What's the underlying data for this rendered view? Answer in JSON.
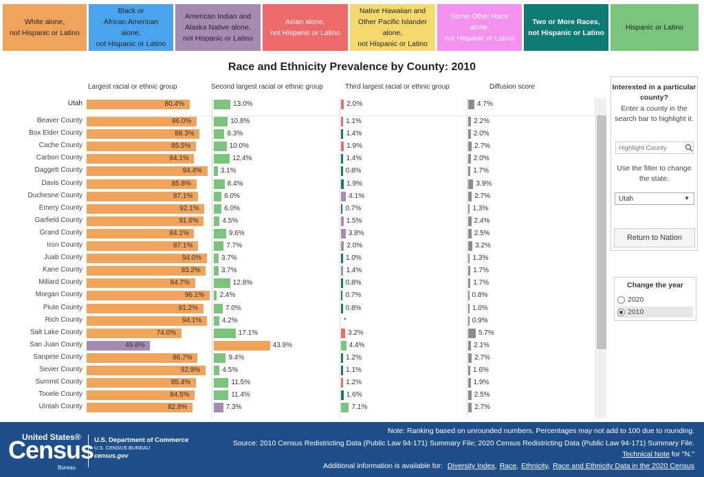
{
  "legend": [
    {
      "label": "White alone,\nnot Hispanic or Latino",
      "color": "#f0a35a",
      "style": "dark-text"
    },
    {
      "label": "Black or\nAfrican American\nalone,\nnot Hispanic or Latino",
      "color": "#4aa4ed",
      "style": "dark-text"
    },
    {
      "label": "American Indian and\nAlaska Native alone,\nnot Hispanic or Latino",
      "color": "#a58bb2",
      "style": "dark-text"
    },
    {
      "label": "Asian alone,\nnot Hispanic or Latino",
      "color": "#ee6a6a",
      "style": "light"
    },
    {
      "label": "Native Hawaiian and\nOther Pacific Islander\nalone,\nnot Hispanic or Latino",
      "color": "#f6d96e",
      "style": "dark-text"
    },
    {
      "label": "Some Other Race\nalone,\nnot Hispanic or Latino",
      "color": "#f490ee",
      "style": "light"
    },
    {
      "label": "Two or More Races,\nnot Hispanic or Latino",
      "color": "#0d7b73",
      "style": "dark"
    },
    {
      "label": "Hispanic or Latino",
      "color": "#7ac47c",
      "style": "dark-text"
    }
  ],
  "title": "Race and Ethnicity Prevalence by County: 2010",
  "column_headers": {
    "largest": "Largest racial or ethnic group",
    "second": "Second largest racial or ethnic group",
    "third": "Third largest racial or ethnic group",
    "diffusion": "Diffusion score"
  },
  "colors": {
    "white": "#f0a35a",
    "aian": "#a58bb2",
    "asian": "#ee6a6a",
    "hispanic": "#7ac47c",
    "two_or_more": "#0d7b73",
    "diffusion": "#8c8c8c",
    "footer": "#1e4f8b"
  },
  "rows": [
    {
      "name": "Utah",
      "state": true,
      "l": [
        80.4,
        "white",
        "80.4%"
      ],
      "s": [
        13.0,
        "hispanic",
        "13.0%"
      ],
      "t": [
        2.0,
        "asian",
        "2.0%"
      ],
      "d": [
        4.7,
        "4.7%"
      ]
    },
    {
      "name": "Beaver County",
      "l": [
        86.0,
        "white",
        "86.0%"
      ],
      "s": [
        10.8,
        "hispanic",
        "10.8%"
      ],
      "t": [
        1.1,
        "asian",
        "1.1%"
      ],
      "d": [
        2.2,
        "2.2%"
      ]
    },
    {
      "name": "Box Elder County",
      "l": [
        88.3,
        "white",
        "88.3%"
      ],
      "s": [
        8.3,
        "hispanic",
        "8.3%"
      ],
      "t": [
        1.4,
        "two_or_more",
        "1.4%"
      ],
      "d": [
        2.0,
        "2.0%"
      ]
    },
    {
      "name": "Cache County",
      "l": [
        85.5,
        "white",
        "85.5%"
      ],
      "s": [
        10.0,
        "hispanic",
        "10.0%"
      ],
      "t": [
        1.9,
        "asian",
        "1.9%"
      ],
      "d": [
        2.7,
        "2.7%"
      ]
    },
    {
      "name": "Carbon County",
      "l": [
        84.1,
        "white",
        "84.1%"
      ],
      "s": [
        12.4,
        "hispanic",
        "12.4%"
      ],
      "t": [
        1.4,
        "two_or_more",
        "1.4%"
      ],
      "d": [
        2.0,
        "2.0%"
      ]
    },
    {
      "name": "Daggett County",
      "l": [
        94.4,
        "white",
        "94.4%"
      ],
      "s": [
        3.1,
        "hispanic",
        "3.1%"
      ],
      "t": [
        0.8,
        "two_or_more",
        "0.8%"
      ],
      "d": [
        1.7,
        "1.7%"
      ]
    },
    {
      "name": "Davis County",
      "l": [
        85.8,
        "white",
        "85.8%"
      ],
      "s": [
        8.4,
        "hispanic",
        "8.4%"
      ],
      "t": [
        1.9,
        "two_or_more",
        "1.9%"
      ],
      "d": [
        3.9,
        "3.9%"
      ]
    },
    {
      "name": "Duchesne County",
      "l": [
        87.1,
        "white",
        "87.1%"
      ],
      "s": [
        6.0,
        "hispanic",
        "6.0%"
      ],
      "t": [
        4.1,
        "aian",
        "4.1%"
      ],
      "d": [
        2.7,
        "2.7%"
      ]
    },
    {
      "name": "Emery County",
      "l": [
        92.1,
        "white",
        "92.1%"
      ],
      "s": [
        6.0,
        "hispanic",
        "6.0%"
      ],
      "t": [
        0.7,
        "two_or_more",
        "0.7%"
      ],
      "d": [
        1.3,
        "1.3%"
      ]
    },
    {
      "name": "Garfield County",
      "l": [
        91.6,
        "white",
        "91.6%"
      ],
      "s": [
        4.5,
        "hispanic",
        "4.5%"
      ],
      "t": [
        1.5,
        "aian",
        "1.5%"
      ],
      "d": [
        2.4,
        "2.4%"
      ]
    },
    {
      "name": "Grand County",
      "l": [
        84.1,
        "white",
        "84.1%"
      ],
      "s": [
        9.6,
        "hispanic",
        "9.6%"
      ],
      "t": [
        3.8,
        "aian",
        "3.8%"
      ],
      "d": [
        2.5,
        "2.5%"
      ]
    },
    {
      "name": "Iron County",
      "l": [
        87.1,
        "white",
        "87.1%"
      ],
      "s": [
        7.7,
        "hispanic",
        "7.7%"
      ],
      "t": [
        2.0,
        "aian",
        "2.0%"
      ],
      "d": [
        3.2,
        "3.2%"
      ]
    },
    {
      "name": "Juab County",
      "l": [
        94.0,
        "white",
        "94.0%"
      ],
      "s": [
        3.7,
        "hispanic",
        "3.7%"
      ],
      "t": [
        1.0,
        "two_or_more",
        "1.0%"
      ],
      "d": [
        1.3,
        "1.3%"
      ]
    },
    {
      "name": "Kane County",
      "l": [
        93.2,
        "white",
        "93.2%"
      ],
      "s": [
        3.7,
        "hispanic",
        "3.7%"
      ],
      "t": [
        1.4,
        "aian",
        "1.4%"
      ],
      "d": [
        1.7,
        "1.7%"
      ]
    },
    {
      "name": "Millard County",
      "l": [
        84.7,
        "white",
        "84.7%"
      ],
      "s": [
        12.8,
        "hispanic",
        "12.8%"
      ],
      "t": [
        0.8,
        "two_or_more",
        "0.8%"
      ],
      "d": [
        1.7,
        "1.7%"
      ]
    },
    {
      "name": "Morgan County",
      "l": [
        96.1,
        "white",
        "96.1%"
      ],
      "s": [
        2.4,
        "hispanic",
        "2.4%"
      ],
      "t": [
        0.7,
        "two_or_more",
        "0.7%"
      ],
      "d": [
        0.8,
        "0.8%"
      ]
    },
    {
      "name": "Piute County",
      "l": [
        91.2,
        "white",
        "91.2%"
      ],
      "s": [
        7.0,
        "hispanic",
        "7.0%"
      ],
      "t": [
        0.8,
        "two_or_more",
        "0.8%"
      ],
      "d": [
        1.0,
        "1.0%"
      ]
    },
    {
      "name": "Rich County",
      "l": [
        94.1,
        "white",
        "94.1%"
      ],
      "s": [
        4.2,
        "hispanic",
        "4.2%"
      ],
      "t": [
        0,
        "two_or_more",
        "*"
      ],
      "d": [
        0.9,
        "0.9%"
      ]
    },
    {
      "name": "Salt Lake County",
      "l": [
        74.0,
        "white",
        "74.0%"
      ],
      "s": [
        17.1,
        "hispanic",
        "17.1%"
      ],
      "t": [
        3.2,
        "asian",
        "3.2%"
      ],
      "d": [
        5.7,
        "5.7%"
      ]
    },
    {
      "name": "San Juan County",
      "l": [
        49.6,
        "aian",
        "49.6%"
      ],
      "s": [
        43.9,
        "white",
        "43.9%"
      ],
      "t": [
        4.4,
        "hispanic",
        "4.4%"
      ],
      "d": [
        2.1,
        "2.1%"
      ]
    },
    {
      "name": "Sanpete County",
      "l": [
        86.7,
        "white",
        "86.7%"
      ],
      "s": [
        9.4,
        "hispanic",
        "9.4%"
      ],
      "t": [
        1.2,
        "two_or_more",
        "1.2%"
      ],
      "d": [
        2.7,
        "2.7%"
      ]
    },
    {
      "name": "Sevier County",
      "l": [
        92.9,
        "white",
        "92.9%"
      ],
      "s": [
        4.5,
        "hispanic",
        "4.5%"
      ],
      "t": [
        1.1,
        "two_or_more",
        "1.1%"
      ],
      "d": [
        1.6,
        "1.6%"
      ]
    },
    {
      "name": "Summit County",
      "l": [
        85.4,
        "white",
        "85.4%"
      ],
      "s": [
        11.5,
        "hispanic",
        "11.5%"
      ],
      "t": [
        1.2,
        "asian",
        "1.2%"
      ],
      "d": [
        1.9,
        "1.9%"
      ]
    },
    {
      "name": "Tooele County",
      "l": [
        84.5,
        "white",
        "84.5%"
      ],
      "s": [
        11.4,
        "hispanic",
        "11.4%"
      ],
      "t": [
        1.6,
        "two_or_more",
        "1.6%"
      ],
      "d": [
        2.5,
        "2.5%"
      ]
    },
    {
      "name": "Uintah County",
      "l": [
        82.8,
        "white",
        "82.8%"
      ],
      "s": [
        7.3,
        "aian",
        "7.3%"
      ],
      "t": [
        7.1,
        "hispanic",
        "7.1%"
      ],
      "d": [
        2.7,
        "2.7%"
      ]
    }
  ],
  "panel": {
    "title": "Interested in a particular county?",
    "text1": "Enter a county in the search bar to highlight it.",
    "search_placeholder": "Highlight County",
    "text2": "Use the filter to change the state.",
    "state_value": "Utah",
    "return_label": "Return to Nation"
  },
  "year": {
    "title": "Change the year",
    "options": [
      "2020",
      "2010"
    ],
    "selected": "2010"
  },
  "footer": {
    "logo_top": "United States®",
    "logo_main": "Census",
    "logo_sub": "Bureau",
    "dept1": "U.S. Department of Commerce",
    "dept2": "U.S. CENSUS BUREAU",
    "dept3": "census.gov",
    "note1": "Note: Ranking based on unrounded numbers. Percentages may not add to 100 due to rounding.",
    "note2": "Source: 2010 Census Redistricting Data (Public Law 94-171) Summary File; 2020 Census Redistricting Data (Public Law 94-171) Summary File.",
    "technical_note": "Technical Note",
    "technical_suffix": " for \"N.\"",
    "additional": "Additional information is available for:",
    "links": [
      "Diversity Index",
      "Race",
      "Ethnicity",
      "Race and Ethnicity Data in the 2020 Census"
    ]
  }
}
